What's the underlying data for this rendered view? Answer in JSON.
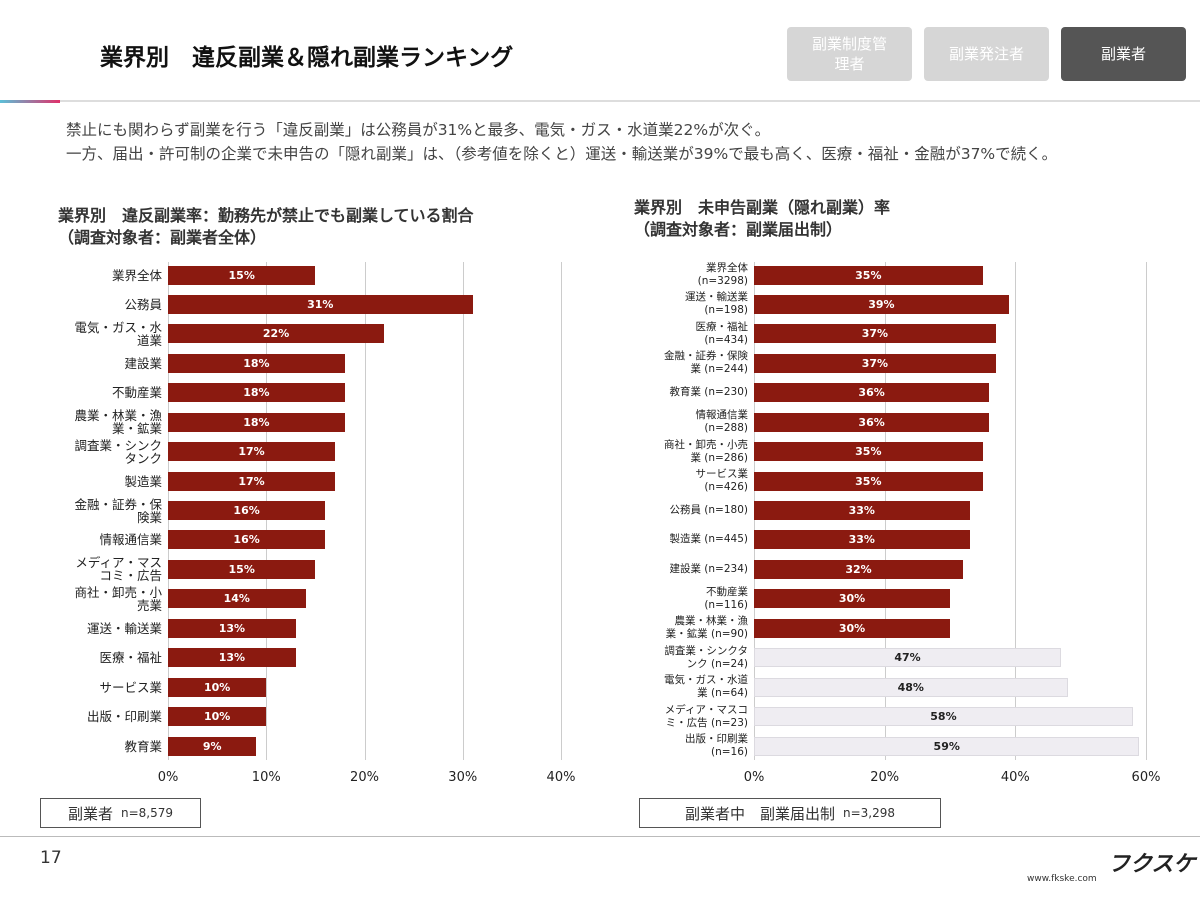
{
  "header": {
    "title": "業界別　違反副業＆隠れ副業ランキング",
    "tabs": [
      "副業制度管理者",
      "副業発注者",
      "副業者"
    ]
  },
  "description": [
    "禁止にも関わらず副業を行う「違反副業」は公務員が31%と最多、電気・ガス・水道業22%が次ぐ。",
    "一方、届出・許可制の企業で未申告の「隠れ副業」は、（参考値を除くと）運送・輸送業が39%で最も高く、医療・福祉・金融が37%で続く。"
  ],
  "chart_data": [
    {
      "type": "bar",
      "orientation": "horizontal",
      "title": "業界別　違反副業率：勤務先が禁止でも副業している割合",
      "subtitle": "（調査対象者：副業者全体）",
      "categories": [
        "業界全体",
        "公務員",
        "電気・ガス・水道業",
        "建設業",
        "不動産業",
        "農業・林業・漁業・鉱業",
        "調査業・シンクタンク",
        "製造業",
        "金融・証券・保険業",
        "情報通信業",
        "メディア・マスコミ・広告",
        "商社・卸売・小売業",
        "運送・輸送業",
        "医療・福祉",
        "サービス業",
        "出版・印刷業",
        "教育業"
      ],
      "values": [
        15,
        31,
        22,
        18,
        18,
        18,
        17,
        17,
        16,
        16,
        15,
        14,
        13,
        13,
        10,
        10,
        9
      ],
      "value_labels": [
        "15%",
        "31%",
        "22%",
        "18%",
        "18%",
        "18%",
        "17%",
        "17%",
        "16%",
        "16%",
        "15%",
        "14%",
        "13%",
        "13%",
        "10%",
        "10%",
        "9%"
      ],
      "color": "#8b1a10",
      "xlim": [
        0,
        40
      ],
      "xticks": [
        {
          "value": 0,
          "label": "0%"
        },
        {
          "value": 10,
          "label": "10%"
        },
        {
          "value": 20,
          "label": "20%"
        },
        {
          "value": 30,
          "label": "30%"
        },
        {
          "value": 40,
          "label": "40%"
        }
      ],
      "grid": true,
      "note_label": "副業者",
      "note_n": "n=8,579"
    },
    {
      "type": "bar",
      "orientation": "horizontal",
      "title": "業界別　未申告副業（隠れ副業）率",
      "subtitle": "（調査対象者：副業届出制）",
      "categories": [
        "業界全体 (n=3298)",
        "運送・輸送業 (n=198)",
        "医療・福祉 (n=434)",
        "金融・証券・保険業 (n=244)",
        "教育業 (n=230)",
        "情報通信業 (n=288)",
        "商社・卸売・小売業 (n=286)",
        "サービス業 (n=426)",
        "公務員 (n=180)",
        "製造業 (n=445)",
        "建設業 (n=234)",
        "不動産業 (n=116)",
        "農業・林業・漁業・鉱業 (n=90)",
        "調査業・シンクタンク (n=24)",
        "電気・ガス・水道業 (n=64)",
        "メディア・マスコミ・広告 (n=23)",
        "出版・印刷業 (n=16)"
      ],
      "values": [
        35,
        39,
        37,
        37,
        36,
        36,
        35,
        35,
        33,
        33,
        32,
        30,
        30,
        47,
        48,
        58,
        59
      ],
      "value_labels": [
        "35%",
        "39%",
        "37%",
        "37%",
        "36%",
        "36%",
        "35%",
        "35%",
        "33%",
        "33%",
        "32%",
        "30%",
        "30%",
        "47%",
        "48%",
        "58%",
        "59%"
      ],
      "colors": [
        "#8b1a10",
        "#8b1a10",
        "#8b1a10",
        "#8b1a10",
        "#8b1a10",
        "#8b1a10",
        "#8b1a10",
        "#8b1a10",
        "#8b1a10",
        "#8b1a10",
        "#8b1a10",
        "#8b1a10",
        "#8b1a10",
        "#efedf2",
        "#efedf2",
        "#efedf2",
        "#efedf2"
      ],
      "xlim": [
        0,
        60
      ],
      "xticks": [
        {
          "value": 0,
          "label": "0%"
        },
        {
          "value": 20,
          "label": "20%"
        },
        {
          "value": 40,
          "label": "40%"
        },
        {
          "value": 60,
          "label": "60%"
        }
      ],
      "grid": true,
      "note_label": "副業者中　副業届出制",
      "note_n": "n=3,298"
    }
  ],
  "footer": {
    "page": "17",
    "logo": "フクスケ",
    "url": "www.fkske.com"
  }
}
